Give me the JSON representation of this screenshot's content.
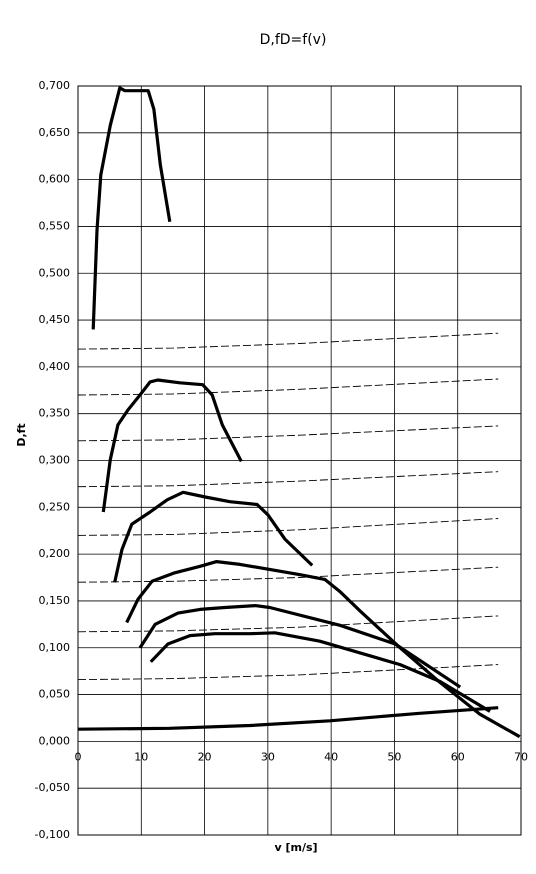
{
  "chart_data": {
    "type": "line",
    "title": "D,fD=f(v)",
    "x_label": "v [m/s]",
    "y_label": "D,ft",
    "grid": true,
    "xlim": [
      0,
      70
    ],
    "xticks": [
      0,
      10,
      20,
      30,
      40,
      50,
      60,
      70
    ],
    "ylim": [
      -0.1,
      0.7
    ],
    "yticks": [
      {
        "value": -0.1,
        "label": "-0,100"
      },
      {
        "value": -0.05,
        "label": "-0,050"
      },
      {
        "value": 0,
        "label": "0,000"
      },
      {
        "value": 0.05,
        "label": "0,050"
      },
      {
        "value": 0.1,
        "label": "0,100"
      },
      {
        "value": 0.15,
        "label": "0,150"
      },
      {
        "value": 0.2,
        "label": "0,200"
      },
      {
        "value": 0.25,
        "label": "0,250"
      },
      {
        "value": 0.3,
        "label": "0,300"
      },
      {
        "value": 0.35,
        "label": "0,350"
      },
      {
        "value": 0.4,
        "label": "0,400"
      },
      {
        "value": 0.45,
        "label": "0,450"
      },
      {
        "value": 0.5,
        "label": "0,500"
      },
      {
        "value": 0.55,
        "label": "0,550"
      },
      {
        "value": 0.6,
        "label": "0,600"
      },
      {
        "value": 0.65,
        "label": "0,650"
      },
      {
        "value": 0.7,
        "label": "0,700"
      }
    ],
    "series": [
      {
        "color": "#000000",
        "line_style": "solid",
        "x": [
          2.4,
          3.0,
          3.6,
          5.1,
          6.6,
          7.4,
          11.1,
          12.0,
          13.0,
          14.5
        ],
        "values": [
          0.44,
          0.546,
          0.605,
          0.658,
          0.698,
          0.695,
          0.695,
          0.675,
          0.616,
          0.555
        ]
      },
      {
        "color": "#000000",
        "line_style": "solid",
        "x": [
          4.0,
          5.1,
          6.3,
          7.9,
          9.8,
          11.4,
          12.6,
          16.1,
          19.7,
          21.2,
          22.8,
          25.8
        ],
        "values": [
          0.245,
          0.301,
          0.338,
          0.354,
          0.37,
          0.384,
          0.386,
          0.383,
          0.381,
          0.37,
          0.338,
          0.299
        ]
      },
      {
        "color": "#000000",
        "line_style": "solid",
        "x": [
          5.8,
          6.95,
          8.5,
          11.4,
          14.1,
          16.6,
          20.1,
          24.0,
          28.3,
          30.0,
          32.7,
          37.0
        ],
        "values": [
          0.17,
          0.205,
          0.232,
          0.245,
          0.258,
          0.266,
          0.261,
          0.256,
          0.253,
          0.242,
          0.216,
          0.188
        ]
      },
      {
        "color": "#000000",
        "line_style": "solid",
        "x": [
          7.7,
          9.5,
          11.7,
          15.3,
          19.3,
          21.9,
          25.6,
          35.1,
          39.0,
          41.4,
          44.6,
          50.9,
          57.2,
          63.5,
          69.8
        ],
        "values": [
          0.127,
          0.152,
          0.171,
          0.18,
          0.187,
          0.192,
          0.189,
          0.178,
          0.173,
          0.16,
          0.139,
          0.1,
          0.063,
          0.029,
          0.005
        ]
      },
      {
        "color": "#000000",
        "line_style": "solid",
        "x": [
          9.8,
          12.2,
          15.8,
          19.3,
          23.2,
          28.0,
          30.3,
          41.4,
          50.1,
          60.4
        ],
        "values": [
          0.1,
          0.125,
          0.137,
          0.141,
          0.143,
          0.145,
          0.143,
          0.124,
          0.104,
          0.058
        ]
      },
      {
        "color": "#000000",
        "line_style": "solid",
        "x": [
          11.5,
          14.2,
          17.7,
          21.6,
          27.2,
          31.1,
          38.2,
          50.9,
          57.2,
          65.1
        ],
        "values": [
          0.085,
          0.104,
          0.113,
          0.115,
          0.115,
          0.116,
          0.107,
          0.082,
          0.064,
          0.032
        ]
      },
      {
        "color": "#000000",
        "line_style": "solid",
        "x": [
          0,
          14.5,
          27.2,
          39.8,
          54.0,
          66.4
        ],
        "values": [
          0.013,
          0.014,
          0.017,
          0.022,
          0.03,
          0.036
        ]
      },
      {
        "color": "#000000",
        "line_style": "dashed",
        "x": [
          0,
          15,
          35,
          66.4
        ],
        "values": [
          0.419,
          0.42,
          0.425,
          0.436
        ]
      },
      {
        "color": "#000000",
        "line_style": "dashed",
        "x": [
          0,
          15,
          35,
          66.4
        ],
        "values": [
          0.37,
          0.371,
          0.376,
          0.387
        ]
      },
      {
        "color": "#000000",
        "line_style": "dashed",
        "x": [
          0,
          15,
          35,
          66.4
        ],
        "values": [
          0.321,
          0.322,
          0.327,
          0.337
        ]
      },
      {
        "color": "#000000",
        "line_style": "dashed",
        "x": [
          0,
          15,
          35,
          66.4
        ],
        "values": [
          0.272,
          0.273,
          0.278,
          0.288
        ]
      },
      {
        "color": "#000000",
        "line_style": "dashed",
        "x": [
          0,
          15,
          35,
          66.4
        ],
        "values": [
          0.22,
          0.221,
          0.226,
          0.238
        ]
      },
      {
        "color": "#000000",
        "line_style": "dashed",
        "x": [
          0,
          15,
          35,
          66.4
        ],
        "values": [
          0.17,
          0.171,
          0.175,
          0.186
        ]
      },
      {
        "color": "#000000",
        "line_style": "dashed",
        "x": [
          0,
          15,
          35,
          66.4
        ],
        "values": [
          0.117,
          0.118,
          0.122,
          0.134
        ]
      },
      {
        "color": "#000000",
        "line_style": "dashed",
        "x": [
          0,
          15,
          35,
          66.4
        ],
        "values": [
          0.066,
          0.067,
          0.071,
          0.082
        ]
      }
    ]
  }
}
